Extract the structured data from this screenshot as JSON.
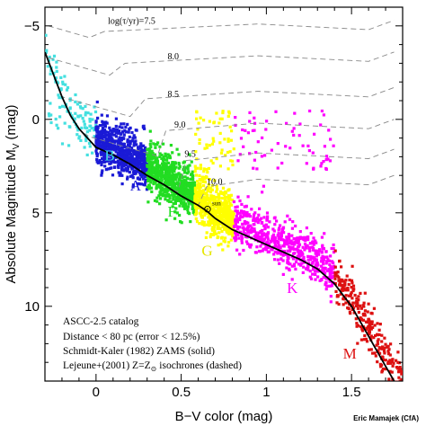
{
  "chart_data": {
    "type": "scatter",
    "title": "",
    "xlabel": "B−V color (mag)",
    "ylabel": "Absolute Magnitude M",
    "ylabel_sub": "V",
    "ylabel_unit": "(mag)",
    "xlim": [
      -0.3,
      1.8
    ],
    "ylim": [
      14,
      -6
    ],
    "y_inverted": true,
    "x_ticks": [
      "0",
      "0.5",
      "1",
      "1.5"
    ],
    "x_tick_values": [
      0,
      0.5,
      1,
      1.5
    ],
    "y_ticks": [
      "−5",
      "0",
      "5",
      "10"
    ],
    "y_tick_values": [
      -5,
      0,
      5,
      10
    ],
    "grid": false,
    "series": [
      {
        "name": "B",
        "color": "#44e0e0",
        "bv_range": [
          -0.3,
          0.0
        ],
        "mv_at_center": 0.8
      },
      {
        "name": "A",
        "color": "#1a1ad6",
        "bv_range": [
          0.0,
          0.3
        ],
        "mv_at_center": 2.0
      },
      {
        "name": "F",
        "color": "#22dd22",
        "bv_range": [
          0.3,
          0.58
        ],
        "mv_at_center": 3.8
      },
      {
        "name": "G",
        "color": "#ffff00",
        "bv_range": [
          0.58,
          0.81
        ],
        "mv_at_center": 5.0
      },
      {
        "name": "K",
        "color": "#ff00ff",
        "bv_range": [
          0.81,
          1.4
        ],
        "mv_at_center": 6.8
      },
      {
        "name": "M",
        "color": "#dd1111",
        "bv_range": [
          1.4,
          1.8
        ],
        "mv_at_center": 9.8
      }
    ],
    "spectral_labels": [
      {
        "text": "B",
        "x": 0.05,
        "y": 2.2,
        "color": "#44e0e0"
      },
      {
        "text": "A",
        "x": 0.2,
        "y": 3.8,
        "color": "#1a1ad6"
      },
      {
        "text": "F",
        "x": 0.42,
        "y": 5.2,
        "color": "#22dd22"
      },
      {
        "text": "G",
        "x": 0.62,
        "y": 7.3,
        "color": "#e6e600"
      },
      {
        "text": "K",
        "x": 1.12,
        "y": 9.3,
        "color": "#ff00ff"
      },
      {
        "text": "M",
        "x": 1.45,
        "y": 12.8,
        "color": "#dd1111"
      }
    ],
    "zams": [
      [
        -0.3,
        -3.6
      ],
      [
        -0.25,
        -2.4
      ],
      [
        -0.2,
        -1.2
      ],
      [
        -0.15,
        -0.2
      ],
      [
        -0.1,
        0.5
      ],
      [
        -0.05,
        1.0
      ],
      [
        0.0,
        1.5
      ],
      [
        0.1,
        1.9
      ],
      [
        0.2,
        2.4
      ],
      [
        0.3,
        3.0
      ],
      [
        0.4,
        3.5
      ],
      [
        0.5,
        4.1
      ],
      [
        0.6,
        4.6
      ],
      [
        0.65,
        4.9
      ],
      [
        0.7,
        5.3
      ],
      [
        0.8,
        5.9
      ],
      [
        0.9,
        6.3
      ],
      [
        1.0,
        6.7
      ],
      [
        1.1,
        7.1
      ],
      [
        1.2,
        7.5
      ],
      [
        1.3,
        8.0
      ],
      [
        1.4,
        8.8
      ],
      [
        1.5,
        10.0
      ],
      [
        1.6,
        11.6
      ],
      [
        1.7,
        13.2
      ],
      [
        1.75,
        14.0
      ]
    ],
    "isochrones": [
      {
        "label": "log(τ/yr)=7.5",
        "label_x": 0.07,
        "label_y": -5.1
      },
      {
        "label": "8.0",
        "label_x": 0.42,
        "label_y": -3.2
      },
      {
        "label": "8.5",
        "label_x": 0.42,
        "label_y": -1.2
      },
      {
        "label": "9.0",
        "label_x": 0.46,
        "label_y": 0.45
      },
      {
        "label": "9.5",
        "label_x": 0.52,
        "label_y": 2.0
      },
      {
        "label": "10.0",
        "label_x": 0.65,
        "label_y": 3.5
      }
    ],
    "sun": {
      "symbol": "⊙",
      "subscript": "sun",
      "x": 0.65,
      "y": 4.8
    },
    "annotations": [
      "ASCC-2.5 catalog",
      "Distance < 80 pc (error < 12.5%)",
      "Schmidt-Kaler (1982) ZAMS (solid)",
      "Lejeune+(2001) Z=Z",
      "isochrones (dashed)"
    ],
    "credit": "Eric Mamajek (CfA)"
  }
}
